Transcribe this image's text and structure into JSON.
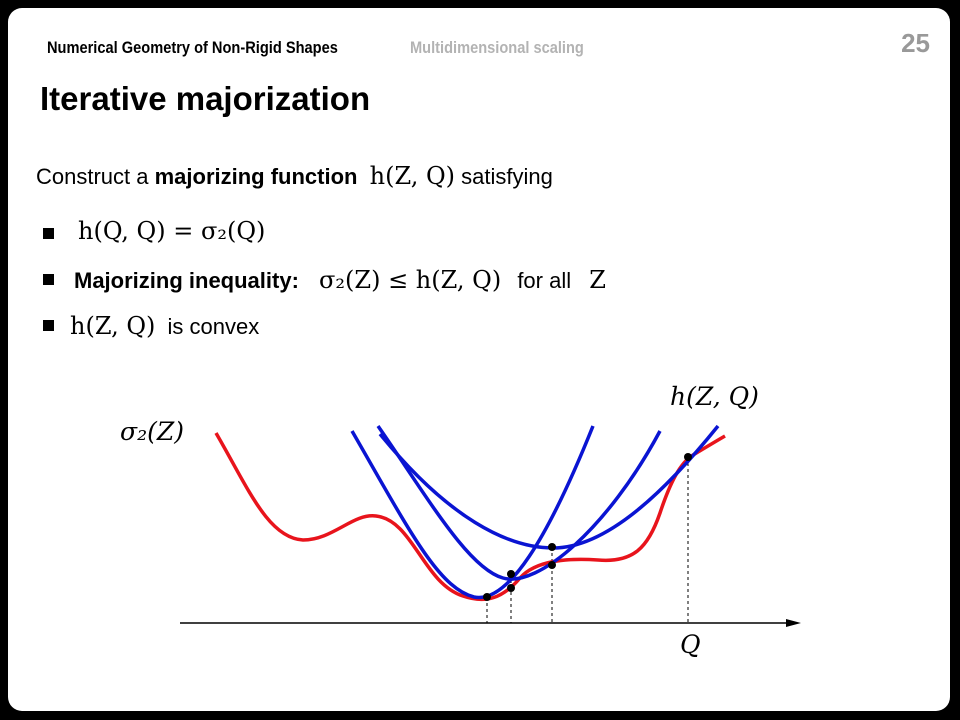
{
  "header": {
    "course": "Numerical Geometry of Non-Rigid Shapes",
    "topic": "Multidimensional scaling",
    "page": "25"
  },
  "title": "Iterative majorization",
  "intro": {
    "prefix": "Construct a ",
    "bold": "majorizing function",
    "math": "h(Z, Q)",
    "suffix": " satisfying"
  },
  "bullets": [
    {
      "math": "h(Q, Q) = σ₂(Q)"
    },
    {
      "bold": "Majorizing inequality:",
      "math": "σ₂(Z) ≤ h(Z, Q)",
      "text": "for all",
      "math2": "Z"
    },
    {
      "math": "h(Z, Q)",
      "text": "is convex"
    }
  ],
  "figure": {
    "label_stress": "σ₂(Z)",
    "label_majorizer": "h(Z, Q)",
    "label_axis": "Q",
    "colors": {
      "stress": "#e8141c",
      "majorizer": "#0a14d2",
      "axis": "#000000"
    }
  }
}
